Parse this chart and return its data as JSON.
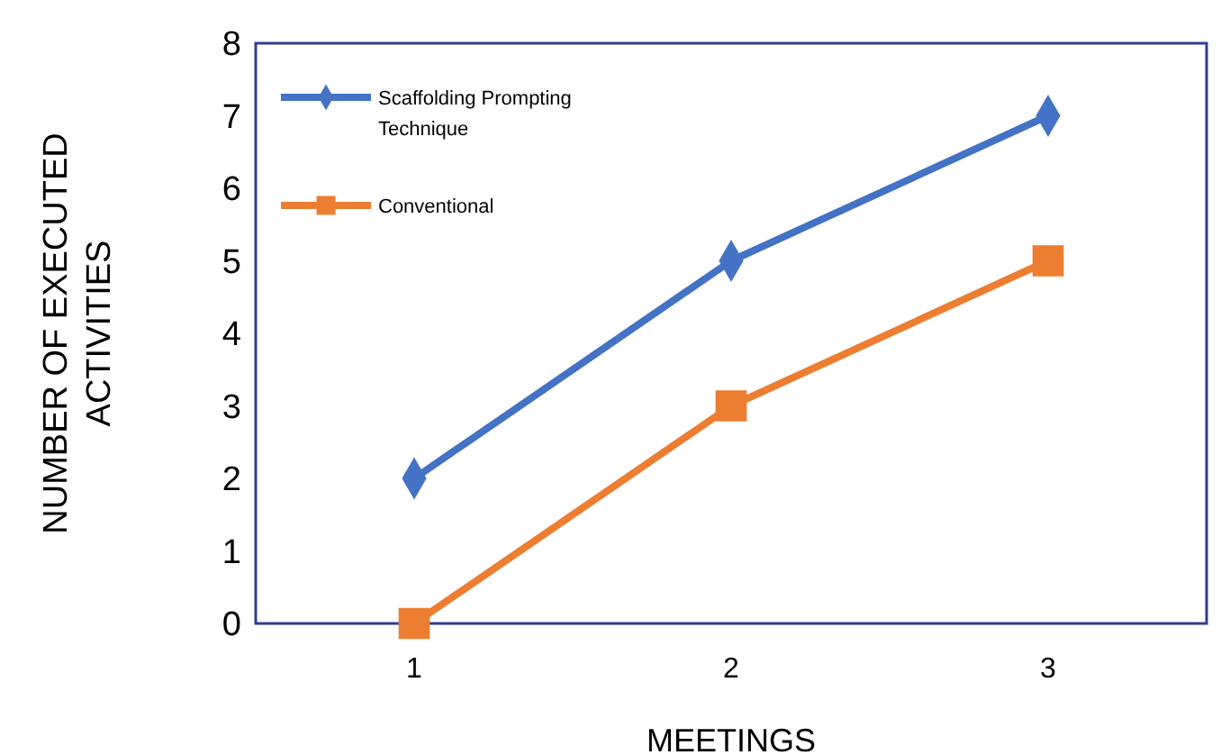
{
  "chart_data": {
    "type": "line",
    "xlabel": "MEETINGS",
    "ylabel": "NUMBER OF EXECUTED ACTIVITIES",
    "categories": [
      "1",
      "2",
      "3"
    ],
    "ylim": [
      0,
      8
    ],
    "yticks": [
      0,
      1,
      2,
      3,
      4,
      5,
      6,
      7,
      8
    ],
    "legend": "top left",
    "series": [
      {
        "name": "Scaffolding Prompting Technique",
        "color": "#4472c4",
        "marker": "diamond",
        "values": [
          2,
          5,
          7
        ]
      },
      {
        "name": "Conventional",
        "color": "#ed7d31",
        "marker": "square",
        "values": [
          0,
          3,
          5
        ]
      }
    ]
  }
}
